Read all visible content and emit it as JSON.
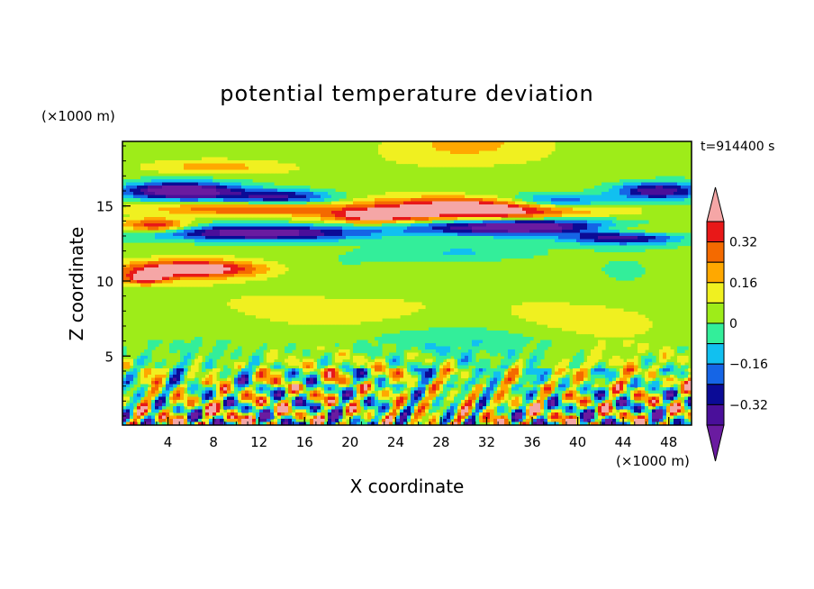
{
  "chart_data": {
    "type": "heatmap",
    "title": "potential temperature deviation",
    "time_label": "t=914400 s",
    "xlabel": "X coordinate",
    "ylabel": "Z coordinate",
    "x_unit": "(×1000 m)",
    "y_unit": "(×1000 m)",
    "xlim": [
      0,
      50
    ],
    "ylim": [
      0.4,
      19.3
    ],
    "x_ticks": [
      4,
      8,
      12,
      16,
      20,
      24,
      28,
      32,
      36,
      40,
      44,
      48
    ],
    "y_ticks": [
      5,
      10,
      15
    ],
    "colorbar": {
      "levels": [
        -0.48,
        -0.4,
        -0.32,
        -0.24,
        -0.16,
        -0.08,
        0,
        0.08,
        0.16,
        0.24,
        0.32,
        0.4
      ],
      "labels": [
        "0.32",
        "0.16",
        "0",
        "−0.16",
        "−0.32"
      ],
      "label_values": [
        0.32,
        0.16,
        0,
        -0.16,
        -0.32
      ],
      "colors": [
        "#6a1ba0",
        "#4a0f9a",
        "#0b0b96",
        "#1565e6",
        "#11c0f0",
        "#33ee9a",
        "#9eec19",
        "#f0f020",
        "#ffa800",
        "#f46a00",
        "#e81818",
        "#f5a6a6"
      ]
    },
    "regions": [
      {
        "name": "upper-warm-lens",
        "value": 0.45,
        "x": [
          21,
          42
        ],
        "z": [
          13.2,
          16.0
        ]
      },
      {
        "name": "upper-cold-band",
        "value": -0.45,
        "x": [
          0,
          50
        ],
        "z": [
          12.4,
          14.6
        ]
      },
      {
        "name": "top-cold-band",
        "value": -0.36,
        "x": [
          0,
          22
        ],
        "z": [
          14.8,
          16.8
        ]
      },
      {
        "name": "left-warm-band",
        "value": 0.4,
        "x": [
          0,
          13
        ],
        "z": [
          9.9,
          12.0
        ]
      },
      {
        "name": "lower-turbulent-layer",
        "value": 0.0,
        "x": [
          0,
          50
        ],
        "z": [
          0.4,
          6.0
        ]
      }
    ]
  }
}
